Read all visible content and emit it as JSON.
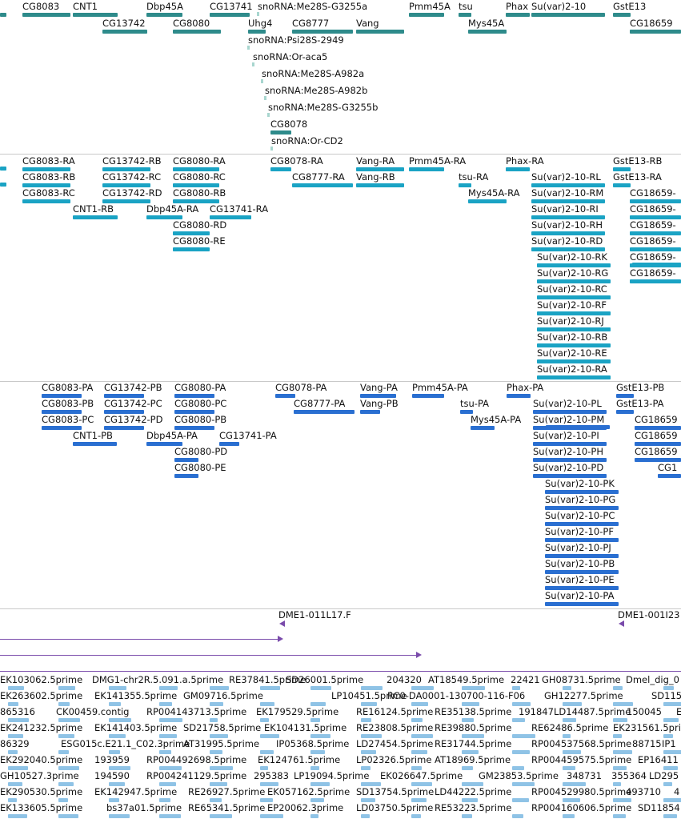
{
  "colors": {
    "gene": "#2e8b8b",
    "transcript": "#1aa3c4",
    "protein": "#2a6fd1",
    "est": "#8fc3e6",
    "clone": "#7a4bab",
    "separator": "#c9c9c9"
  },
  "genes": [
    {
      "label": "CG8083"
    },
    {
      "label": "CNT1"
    },
    {
      "label": "Dbp45A"
    },
    {
      "label": "CG13741"
    },
    {
      "label": "snoRNA:Me28S-G3255a"
    },
    {
      "label": "Pmm45A"
    },
    {
      "label": "tsu"
    },
    {
      "label": "Phax"
    },
    {
      "label": "Su(var)2-10"
    },
    {
      "label": "GstE13"
    },
    {
      "label": "CG13742"
    },
    {
      "label": "CG8080"
    },
    {
      "label": "Uhg4"
    },
    {
      "label": "CG8777"
    },
    {
      "label": "Vang"
    },
    {
      "label": "Mys45A"
    },
    {
      "label": "CG18659"
    },
    {
      "label": "snoRNA:Psi28S-2949"
    },
    {
      "label": "snoRNA:Or-aca5"
    },
    {
      "label": "snoRNA:Me28S-A982a"
    },
    {
      "label": "snoRNA:Me28S-A982b"
    },
    {
      "label": "snoRNA:Me28S-G3255b"
    },
    {
      "label": "CG8078"
    },
    {
      "label": "snoRNA:Or-CD2"
    }
  ],
  "transcripts": [
    {
      "label": "CG8083-RA"
    },
    {
      "label": "CG8083-RB"
    },
    {
      "label": "CG8083-RC"
    },
    {
      "label": "CG13742-RB"
    },
    {
      "label": "CG13742-RC"
    },
    {
      "label": "CG13742-RD"
    },
    {
      "label": "CG8080-RA"
    },
    {
      "label": "CG8080-RC"
    },
    {
      "label": "CG8080-RB"
    },
    {
      "label": "CNT1-RB"
    },
    {
      "label": "Dbp45A-RA"
    },
    {
      "label": "CG13741-RA"
    },
    {
      "label": "CG8080-RD"
    },
    {
      "label": "CG8080-RE"
    },
    {
      "label": "CG8078-RA"
    },
    {
      "label": "CG8777-RA"
    },
    {
      "label": "Vang-RA"
    },
    {
      "label": "Vang-RB"
    },
    {
      "label": "Pmm45A-RA"
    },
    {
      "label": "tsu-RA"
    },
    {
      "label": "Mys45A-RA"
    },
    {
      "label": "Phax-RA"
    },
    {
      "label": "GstE13-RB"
    },
    {
      "label": "GstE13-RA"
    },
    {
      "label": "Su(var)2-10-RL"
    },
    {
      "label": "Su(var)2-10-RM"
    },
    {
      "label": "Su(var)2-10-RI"
    },
    {
      "label": "Su(var)2-10-RH"
    },
    {
      "label": "Su(var)2-10-RD"
    },
    {
      "label": "Su(var)2-10-RK"
    },
    {
      "label": "Su(var)2-10-RG"
    },
    {
      "label": "Su(var)2-10-RC"
    },
    {
      "label": "Su(var)2-10-RF"
    },
    {
      "label": "Su(var)2-10-RJ"
    },
    {
      "label": "Su(var)2-10-RB"
    },
    {
      "label": "Su(var)2-10-RE"
    },
    {
      "label": "Su(var)2-10-RA"
    },
    {
      "label": "CG18659-"
    },
    {
      "label": "CG18659-"
    },
    {
      "label": "CG18659-"
    },
    {
      "label": "CG18659-"
    },
    {
      "label": "CG18659-"
    },
    {
      "label": "CG18659-"
    }
  ],
  "proteins": [
    {
      "label": "CG8083-PA"
    },
    {
      "label": "CG8083-PB"
    },
    {
      "label": "CG8083-PC"
    },
    {
      "label": "CG13742-PB"
    },
    {
      "label": "CG13742-PC"
    },
    {
      "label": "CG13742-PD"
    },
    {
      "label": "CG8080-PA"
    },
    {
      "label": "CG8080-PC"
    },
    {
      "label": "CG8080-PB"
    },
    {
      "label": "CNT1-PB"
    },
    {
      "label": "Dbp45A-PA"
    },
    {
      "label": "CG13741-PA"
    },
    {
      "label": "CG8080-PD"
    },
    {
      "label": "CG8080-PE"
    },
    {
      "label": "CG8078-PA"
    },
    {
      "label": "CG8777-PA"
    },
    {
      "label": "Vang-PA"
    },
    {
      "label": "Vang-PB"
    },
    {
      "label": "Pmm45A-PA"
    },
    {
      "label": "tsu-PA"
    },
    {
      "label": "Mys45A-PA"
    },
    {
      "label": "Phax-PA"
    },
    {
      "label": "GstE13-PB"
    },
    {
      "label": "GstE13-PA"
    },
    {
      "label": "Su(var)2-10-PL"
    },
    {
      "label": "Su(var)2-10-PM"
    },
    {
      "label": "Su(var)2-10-PI"
    },
    {
      "label": "Su(var)2-10-PH"
    },
    {
      "label": "Su(var)2-10-PD"
    },
    {
      "label": "Su(var)2-10-PK"
    },
    {
      "label": "Su(var)2-10-PG"
    },
    {
      "label": "Su(var)2-10-PC"
    },
    {
      "label": "Su(var)2-10-PF"
    },
    {
      "label": "Su(var)2-10-PJ"
    },
    {
      "label": "Su(var)2-10-PB"
    },
    {
      "label": "Su(var)2-10-PE"
    },
    {
      "label": "Su(var)2-10-PA"
    },
    {
      "label": "CG18659"
    },
    {
      "label": "CG18659"
    },
    {
      "label": "CG18659"
    },
    {
      "label": "CG1"
    }
  ],
  "clones": [
    {
      "label": "DME1-011L17.F"
    },
    {
      "label": "DME1-001I23"
    }
  ],
  "ests": [
    {
      "label": "EK103062.5prime"
    },
    {
      "label": "DMG1-chr2R.5.091.a.5prime"
    },
    {
      "label": "RE37841.5prime"
    },
    {
      "label": "SD26001.5prime"
    },
    {
      "label": "204320"
    },
    {
      "label": "AT18549.5prime"
    },
    {
      "label": "22421"
    },
    {
      "label": "GH08731.5prime"
    },
    {
      "label": "Dmel_dig_0"
    },
    {
      "label": "EK263602.5prime"
    },
    {
      "label": "EK141355.5prime"
    },
    {
      "label": "GM09716.5prime"
    },
    {
      "label": "LP10451.5prime"
    },
    {
      "label": "RC0-DA0001-130700-116-F06"
    },
    {
      "label": "GH12277.5prime"
    },
    {
      "label": "SD115"
    },
    {
      "label": "865316"
    },
    {
      "label": "CK00459.contig"
    },
    {
      "label": "RP004143713.5prime"
    },
    {
      "label": "EK179529.5prime"
    },
    {
      "label": "RE16124.5prime"
    },
    {
      "label": "RE35138.5prime"
    },
    {
      "label": "191847"
    },
    {
      "label": "LD14487.5prime"
    },
    {
      "label": "150045"
    },
    {
      "label": "E"
    },
    {
      "label": "EK241232.5prime"
    },
    {
      "label": "EK141403.5prime"
    },
    {
      "label": "SD21758.5prime"
    },
    {
      "label": "EK104131.5prime"
    },
    {
      "label": "RE23808.5prime"
    },
    {
      "label": "RE39880.5prime"
    },
    {
      "label": "RE62486.5prime"
    },
    {
      "label": "EK231561.5prime"
    },
    {
      "label": "86329"
    },
    {
      "label": "ESG015c.E21.1_C02.3prime"
    },
    {
      "label": "AT31995.5prime"
    },
    {
      "label": "IP05368.5prime"
    },
    {
      "label": "LD27454.5prime"
    },
    {
      "label": "RE31744.5prime"
    },
    {
      "label": "RP004537568.5prime"
    },
    {
      "label": "88715"
    },
    {
      "label": "IP1"
    },
    {
      "label": "EK292040.5prime"
    },
    {
      "label": "193959"
    },
    {
      "label": "RP004492698.5prime"
    },
    {
      "label": "EK124761.5prime"
    },
    {
      "label": "LP02326.5prime"
    },
    {
      "label": "AT18969.5prime"
    },
    {
      "label": "RP004459575.5prime"
    },
    {
      "label": "EP16411"
    },
    {
      "label": "GH10527.3prime"
    },
    {
      "label": "194590"
    },
    {
      "label": "RP004241129.5prime"
    },
    {
      "label": "295383"
    },
    {
      "label": "LP19094.5prime"
    },
    {
      "label": "EK026647.5prime"
    },
    {
      "label": "GM23853.5prime"
    },
    {
      "label": "348731"
    },
    {
      "label": "355364"
    },
    {
      "label": "LD295"
    },
    {
      "label": "EK290530.5prime"
    },
    {
      "label": "EK142947.5prime"
    },
    {
      "label": "RE26927.5prime"
    },
    {
      "label": "EK057162.5prime"
    },
    {
      "label": "SD13754.5prime"
    },
    {
      "label": "LD44222.5prime"
    },
    {
      "label": "RP004529980.5prime"
    },
    {
      "label": "493710"
    },
    {
      "label": "4"
    },
    {
      "label": "EK133605.5prime"
    },
    {
      "label": "bs37a01.5prime"
    },
    {
      "label": "RE65341.5prime"
    },
    {
      "label": "EP20062.3prime"
    },
    {
      "label": "LD03750.5prime"
    },
    {
      "label": "RE53223.5prime"
    },
    {
      "label": "RP004160606.5prime"
    },
    {
      "label": "SD11854"
    }
  ]
}
